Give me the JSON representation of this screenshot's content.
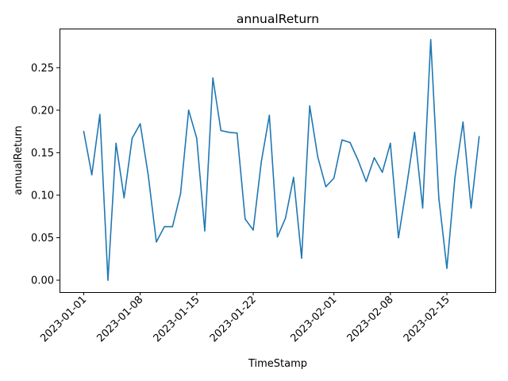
{
  "chart_data": {
    "type": "line",
    "title": "annualReturn",
    "xlabel": "TimeStamp",
    "ylabel": "annualReturn",
    "x_start": "2023-01-01",
    "x_ticks": [
      "2023-01-01",
      "2023-01-08",
      "2023-01-15",
      "2023-01-22",
      "2023-02-01",
      "2023-02-08",
      "2023-02-15"
    ],
    "y_ticks": [
      "0.00",
      "0.05",
      "0.10",
      "0.15",
      "0.20",
      "0.25"
    ],
    "xlim": [
      "2022-12-29",
      "2023-02-21"
    ],
    "ylim": [
      -0.014,
      0.296
    ],
    "grid": false,
    "series": [
      {
        "name": "",
        "color": "#1f77b4",
        "x": [
          "2023-01-01",
          "2023-01-02",
          "2023-01-03",
          "2023-01-04",
          "2023-01-05",
          "2023-01-06",
          "2023-01-07",
          "2023-01-08",
          "2023-01-09",
          "2023-01-10",
          "2023-01-11",
          "2023-01-12",
          "2023-01-13",
          "2023-01-14",
          "2023-01-15",
          "2023-01-16",
          "2023-01-17",
          "2023-01-18",
          "2023-01-19",
          "2023-01-20",
          "2023-01-21",
          "2023-01-22",
          "2023-01-23",
          "2023-01-24",
          "2023-01-25",
          "2023-01-26",
          "2023-01-27",
          "2023-01-28",
          "2023-01-29",
          "2023-01-30",
          "2023-01-31",
          "2023-02-01",
          "2023-02-02",
          "2023-02-03",
          "2023-02-04",
          "2023-02-05",
          "2023-02-06",
          "2023-02-07",
          "2023-02-08",
          "2023-02-09",
          "2023-02-10",
          "2023-02-11",
          "2023-02-12",
          "2023-02-13",
          "2023-02-14",
          "2023-02-15",
          "2023-02-16",
          "2023-02-17",
          "2023-02-18",
          "2023-02-19"
        ],
        "values": [
          0.175,
          0.124,
          0.195,
          0.0,
          0.161,
          0.097,
          0.167,
          0.184,
          0.123,
          0.045,
          0.063,
          0.063,
          0.102,
          0.2,
          0.167,
          0.058,
          0.238,
          0.176,
          0.174,
          0.173,
          0.072,
          0.059,
          0.139,
          0.194,
          0.051,
          0.073,
          0.121,
          0.026,
          0.205,
          0.145,
          0.11,
          0.12,
          0.165,
          0.162,
          0.141,
          0.116,
          0.144,
          0.127,
          0.161,
          0.05,
          0.11,
          0.174,
          0.085,
          0.283,
          0.097,
          0.014,
          0.121,
          0.186,
          0.085,
          0.169
        ]
      }
    ]
  }
}
